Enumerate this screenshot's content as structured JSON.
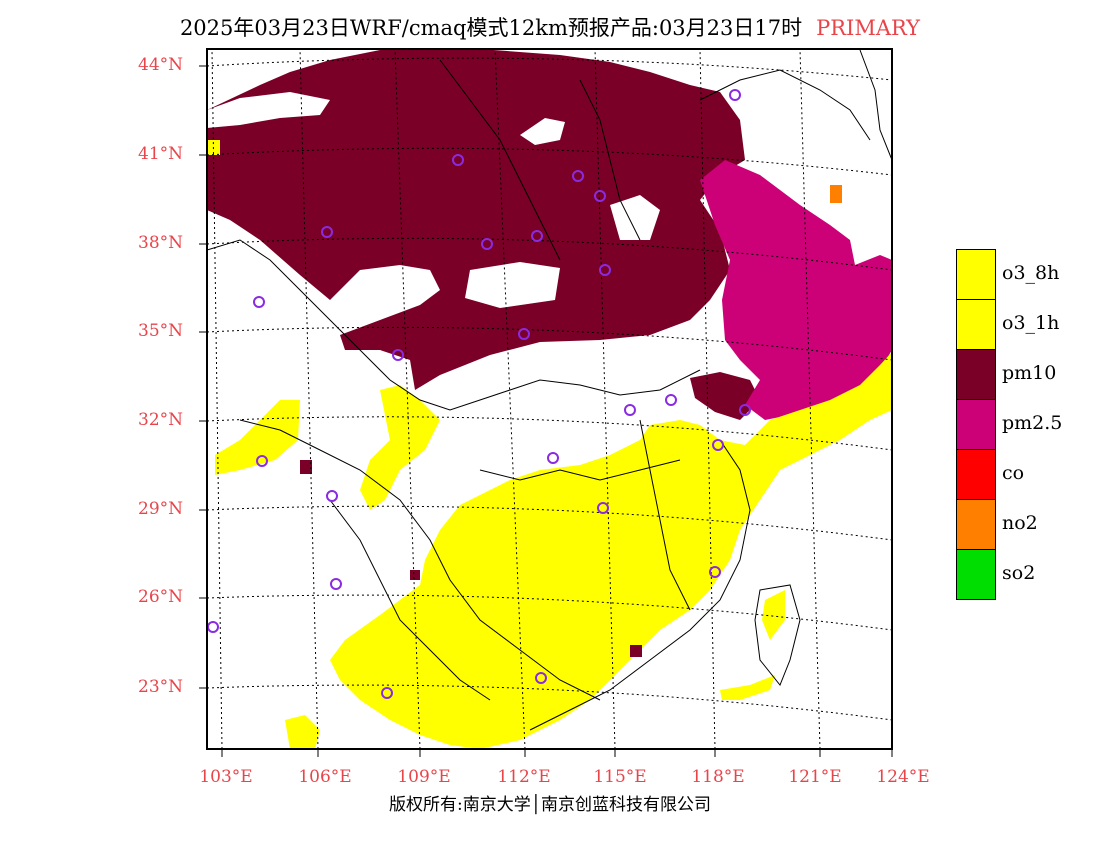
{
  "title": {
    "main": "2025年03月23日WRF/cmaq模式12km预报产品:03月23日17时",
    "sub": "PRIMARY"
  },
  "axes": {
    "lat_labels": [
      "44°N",
      "41°N",
      "38°N",
      "35°N",
      "32°N",
      "29°N",
      "26°N",
      "23°N"
    ],
    "lon_labels": [
      "103°E",
      "106°E",
      "109°E",
      "112°E",
      "115°E",
      "118°E",
      "121°E",
      "124°E"
    ]
  },
  "legend": {
    "items": [
      {
        "label": "o3_8h",
        "color": "#ffff00"
      },
      {
        "label": "o3_1h",
        "color": "#ffff00"
      },
      {
        "label": "pm10",
        "color": "#7a0028"
      },
      {
        "label": "pm2.5",
        "color": "#cc0077"
      },
      {
        "label": "co",
        "color": "#ff0000"
      },
      {
        "label": "no2",
        "color": "#ff7f00"
      },
      {
        "label": "so2",
        "color": "#00dd00"
      }
    ]
  },
  "colors": {
    "axis_label": "#e8454b",
    "station": "#8a2be2"
  },
  "copyright": "版权所有:南京大学│南京创蓝科技有限公司"
}
